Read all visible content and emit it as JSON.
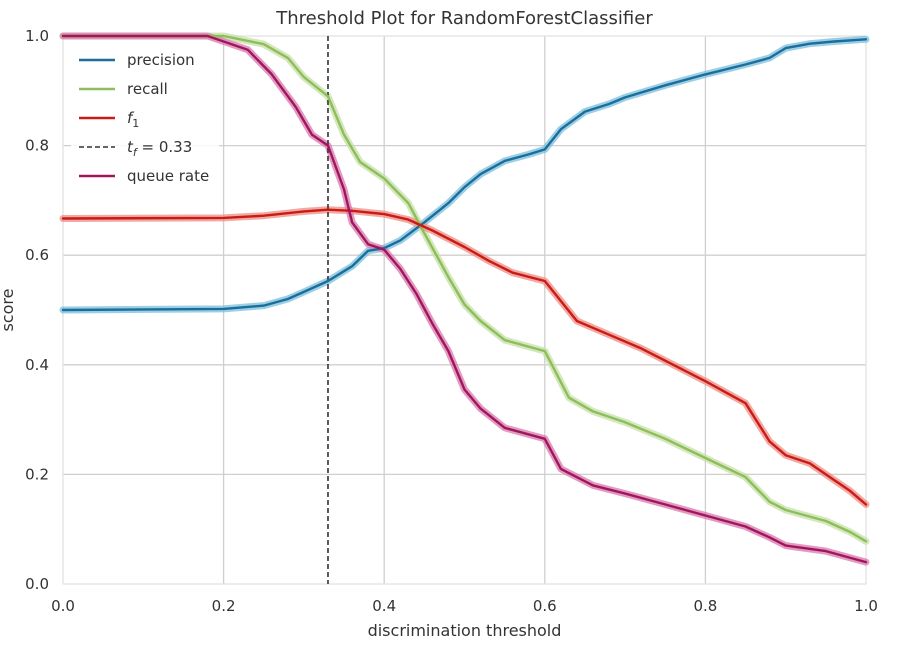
{
  "chart_data": {
    "type": "line",
    "title": "Threshold Plot for RandomForestClassifier",
    "xlabel": "discrimination threshold",
    "ylabel": "score",
    "xlim": [
      0,
      1
    ],
    "ylim": [
      0,
      1
    ],
    "x_ticks": [
      "0.0",
      "0.2",
      "0.4",
      "0.6",
      "0.8",
      "1.0"
    ],
    "y_ticks": [
      "0.0",
      "0.2",
      "0.4",
      "0.6",
      "0.8",
      "1.0"
    ],
    "grid": true,
    "legend_position": "top-left",
    "threshold": {
      "value": 0.33,
      "label_var": "t",
      "label_sub": "f",
      "label_value": " = 0.33",
      "color": "#333333"
    },
    "series": [
      {
        "name": "precision",
        "color": "#1a6e9b",
        "band_color": "#7bbede",
        "points": [
          [
            0.0,
            0.5
          ],
          [
            0.2,
            0.502
          ],
          [
            0.25,
            0.508
          ],
          [
            0.28,
            0.52
          ],
          [
            0.3,
            0.533
          ],
          [
            0.33,
            0.553
          ],
          [
            0.36,
            0.58
          ],
          [
            0.38,
            0.608
          ],
          [
            0.4,
            0.613
          ],
          [
            0.42,
            0.627
          ],
          [
            0.45,
            0.66
          ],
          [
            0.48,
            0.695
          ],
          [
            0.5,
            0.724
          ],
          [
            0.52,
            0.748
          ],
          [
            0.55,
            0.772
          ],
          [
            0.58,
            0.784
          ],
          [
            0.6,
            0.793
          ],
          [
            0.62,
            0.83
          ],
          [
            0.65,
            0.862
          ],
          [
            0.68,
            0.876
          ],
          [
            0.7,
            0.888
          ],
          [
            0.75,
            0.91
          ],
          [
            0.8,
            0.93
          ],
          [
            0.85,
            0.948
          ],
          [
            0.88,
            0.96
          ],
          [
            0.9,
            0.978
          ],
          [
            0.93,
            0.986
          ],
          [
            0.96,
            0.99
          ],
          [
            1.0,
            0.994
          ]
        ]
      },
      {
        "name": "recall",
        "color": "#8ebd5a",
        "band_color": "#c6e0a8",
        "points": [
          [
            0.0,
            1.0
          ],
          [
            0.2,
            1.0
          ],
          [
            0.25,
            0.985
          ],
          [
            0.28,
            0.96
          ],
          [
            0.3,
            0.925
          ],
          [
            0.33,
            0.89
          ],
          [
            0.35,
            0.82
          ],
          [
            0.37,
            0.77
          ],
          [
            0.4,
            0.74
          ],
          [
            0.43,
            0.695
          ],
          [
            0.45,
            0.64
          ],
          [
            0.48,
            0.56
          ],
          [
            0.5,
            0.51
          ],
          [
            0.52,
            0.48
          ],
          [
            0.55,
            0.445
          ],
          [
            0.6,
            0.425
          ],
          [
            0.63,
            0.34
          ],
          [
            0.66,
            0.315
          ],
          [
            0.7,
            0.295
          ],
          [
            0.75,
            0.265
          ],
          [
            0.8,
            0.23
          ],
          [
            0.85,
            0.195
          ],
          [
            0.88,
            0.15
          ],
          [
            0.9,
            0.135
          ],
          [
            0.95,
            0.115
          ],
          [
            0.98,
            0.095
          ],
          [
            1.0,
            0.078
          ]
        ]
      },
      {
        "name": "f1",
        "label_var": "f",
        "label_sub": "1",
        "color": "#cc1a14",
        "band_color": "#ec8c86",
        "points": [
          [
            0.0,
            0.667
          ],
          [
            0.2,
            0.668
          ],
          [
            0.25,
            0.672
          ],
          [
            0.3,
            0.68
          ],
          [
            0.33,
            0.683
          ],
          [
            0.36,
            0.681
          ],
          [
            0.4,
            0.675
          ],
          [
            0.43,
            0.665
          ],
          [
            0.46,
            0.645
          ],
          [
            0.5,
            0.615
          ],
          [
            0.53,
            0.59
          ],
          [
            0.56,
            0.568
          ],
          [
            0.6,
            0.553
          ],
          [
            0.64,
            0.48
          ],
          [
            0.68,
            0.455
          ],
          [
            0.72,
            0.43
          ],
          [
            0.76,
            0.4
          ],
          [
            0.8,
            0.37
          ],
          [
            0.85,
            0.33
          ],
          [
            0.88,
            0.26
          ],
          [
            0.9,
            0.235
          ],
          [
            0.93,
            0.22
          ],
          [
            0.96,
            0.19
          ],
          [
            0.98,
            0.17
          ],
          [
            1.0,
            0.145
          ]
        ]
      },
      {
        "name": "queue rate",
        "color": "#a0165e",
        "band_color": "#d978ab",
        "points": [
          [
            0.0,
            1.0
          ],
          [
            0.18,
            1.0
          ],
          [
            0.2,
            0.99
          ],
          [
            0.23,
            0.975
          ],
          [
            0.26,
            0.93
          ],
          [
            0.29,
            0.87
          ],
          [
            0.31,
            0.82
          ],
          [
            0.33,
            0.8
          ],
          [
            0.35,
            0.72
          ],
          [
            0.36,
            0.66
          ],
          [
            0.38,
            0.62
          ],
          [
            0.4,
            0.61
          ],
          [
            0.42,
            0.575
          ],
          [
            0.44,
            0.53
          ],
          [
            0.46,
            0.475
          ],
          [
            0.48,
            0.425
          ],
          [
            0.5,
            0.355
          ],
          [
            0.52,
            0.32
          ],
          [
            0.55,
            0.285
          ],
          [
            0.6,
            0.265
          ],
          [
            0.62,
            0.21
          ],
          [
            0.66,
            0.18
          ],
          [
            0.7,
            0.165
          ],
          [
            0.75,
            0.145
          ],
          [
            0.8,
            0.125
          ],
          [
            0.85,
            0.105
          ],
          [
            0.88,
            0.085
          ],
          [
            0.9,
            0.07
          ],
          [
            0.95,
            0.06
          ],
          [
            1.0,
            0.04
          ]
        ]
      }
    ]
  }
}
